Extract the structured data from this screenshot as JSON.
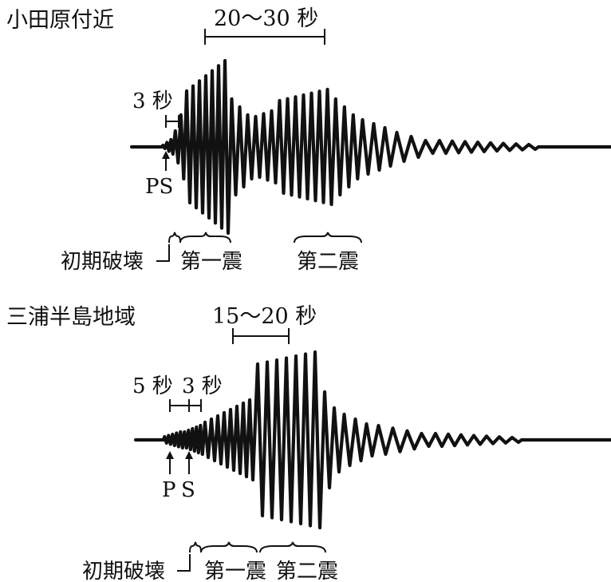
{
  "panels": [
    {
      "title": "小田原付近",
      "span_label": "20～30 秒",
      "interval_label": "3 秒",
      "ps_label": "PS",
      "rupture_label": "初期破壊",
      "shock1_label": "第一震",
      "shock2_label": "第二震"
    },
    {
      "title": "三浦半島地域",
      "span_label": "15～20 秒",
      "interval1_label": "5 秒",
      "interval2_label": "3 秒",
      "p_label": "P",
      "s_label": "S",
      "rupture_label": "初期破壊",
      "shock1_label": "第一震",
      "shock2_label": "第二震"
    }
  ],
  "colors": {
    "ink": "#111111",
    "background": "#ffffff"
  }
}
